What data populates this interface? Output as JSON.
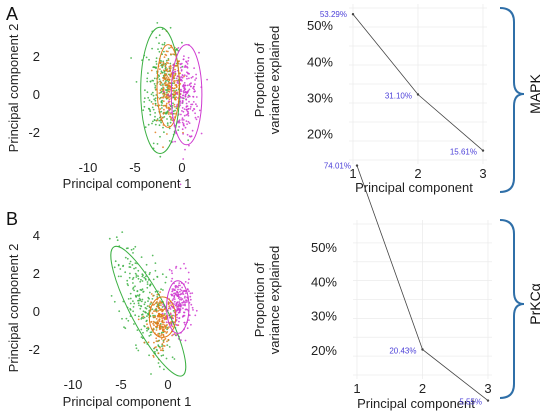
{
  "panels": [
    {
      "letter": "A",
      "scatter": {
        "xlabel": "Principal component 1",
        "ylabel": "Principal component 2",
        "xticks": [
          "-10",
          "-5",
          "0"
        ],
        "yticks": [
          "2",
          "0",
          "-2"
        ]
      },
      "brace_label": "MAPK"
    },
    {
      "letter": "B",
      "scatter": {
        "xlabel": "Principal component 1",
        "ylabel": "Principal component 2",
        "xticks": [
          "-10",
          "-5",
          "0"
        ],
        "yticks": [
          "4",
          "2",
          "0",
          "-2"
        ]
      },
      "brace_label": "PrKCα"
    }
  ],
  "colors": {
    "green": "#3cb043",
    "orange": "#e07b1a",
    "magenta": "#cf3ad0",
    "line": "#444444",
    "label": "#4b3fd8",
    "brace": "#2f6fa8"
  },
  "chart_data": [
    {
      "type": "scatter",
      "xlabel": "Principal component 1",
      "ylabel": "Principal component 2",
      "xlim": [
        -12,
        2.2
      ],
      "ylim": [
        -3.2,
        3.6
      ],
      "series": [
        {
          "color": "green",
          "center": [
            -1.9,
            0.1
          ],
          "spread": [
            0.9,
            1.2
          ],
          "ellipse": {
            "cx": -2.2,
            "cy": 0.0,
            "rx": 1.9,
            "ry": 2.9
          }
        },
        {
          "color": "orange",
          "center": [
            -1.3,
            0.1
          ],
          "spread": [
            0.6,
            0.8
          ],
          "ellipse": {
            "cx": -1.4,
            "cy": 0.2,
            "rx": 1.1,
            "ry": 1.9
          }
        },
        {
          "color": "magenta",
          "center": [
            0.2,
            -0.3
          ],
          "spread": [
            0.7,
            1.0
          ],
          "ellipse": {
            "cx": 0.4,
            "cy": -0.2,
            "rx": 1.5,
            "ry": 2.3
          }
        }
      ]
    },
    {
      "type": "line",
      "xlabel": "Principal component",
      "ylabel": "Proportion of variance explained",
      "categories": [
        "1",
        "2",
        "3"
      ],
      "values": [
        53.29,
        31.1,
        15.61
      ],
      "data_labels": [
        "53.29%",
        "31.10%",
        "15.61%"
      ],
      "yticks": [
        "50%",
        "40%",
        "30%",
        "20%"
      ],
      "ylim": [
        13,
        55
      ]
    },
    {
      "type": "scatter",
      "xlabel": "Principal component 1",
      "ylabel": "Principal component 2",
      "xlim": [
        -11.5,
        2.6
      ],
      "ylim": [
        -3.2,
        4.4
      ],
      "series": [
        {
          "color": "green",
          "center": [
            -2.4,
            0.4
          ],
          "spread": [
            1.3,
            1.2
          ],
          "ellipse": {
            "cx": -2.0,
            "cy": 0.0,
            "rx": 1.7,
            "ry": 3.6,
            "rot": 28
          }
        },
        {
          "color": "orange",
          "center": [
            -0.7,
            -0.5
          ],
          "spread": [
            0.6,
            0.6
          ],
          "ellipse": {
            "cx": -0.6,
            "cy": -0.3,
            "rx": 1.3,
            "ry": 1.0
          }
        },
        {
          "color": "magenta",
          "center": [
            1.0,
            0.3
          ],
          "spread": [
            0.6,
            0.7
          ],
          "ellipse": {
            "cx": 0.9,
            "cy": 0.2,
            "rx": 1.1,
            "ry": 1.3
          }
        }
      ]
    },
    {
      "type": "line",
      "xlabel": "Principal component",
      "ylabel": "Proportion of variance explained",
      "categories": [
        "1",
        "2",
        "3"
      ],
      "values": [
        74.01,
        20.43,
        5.55
      ],
      "data_labels": [
        "74.01%",
        "20.43%",
        "5.55%"
      ],
      "yticks": [
        "50%",
        "40%",
        "30%",
        "20%"
      ],
      "ylim": [
        13,
        57
      ]
    }
  ]
}
